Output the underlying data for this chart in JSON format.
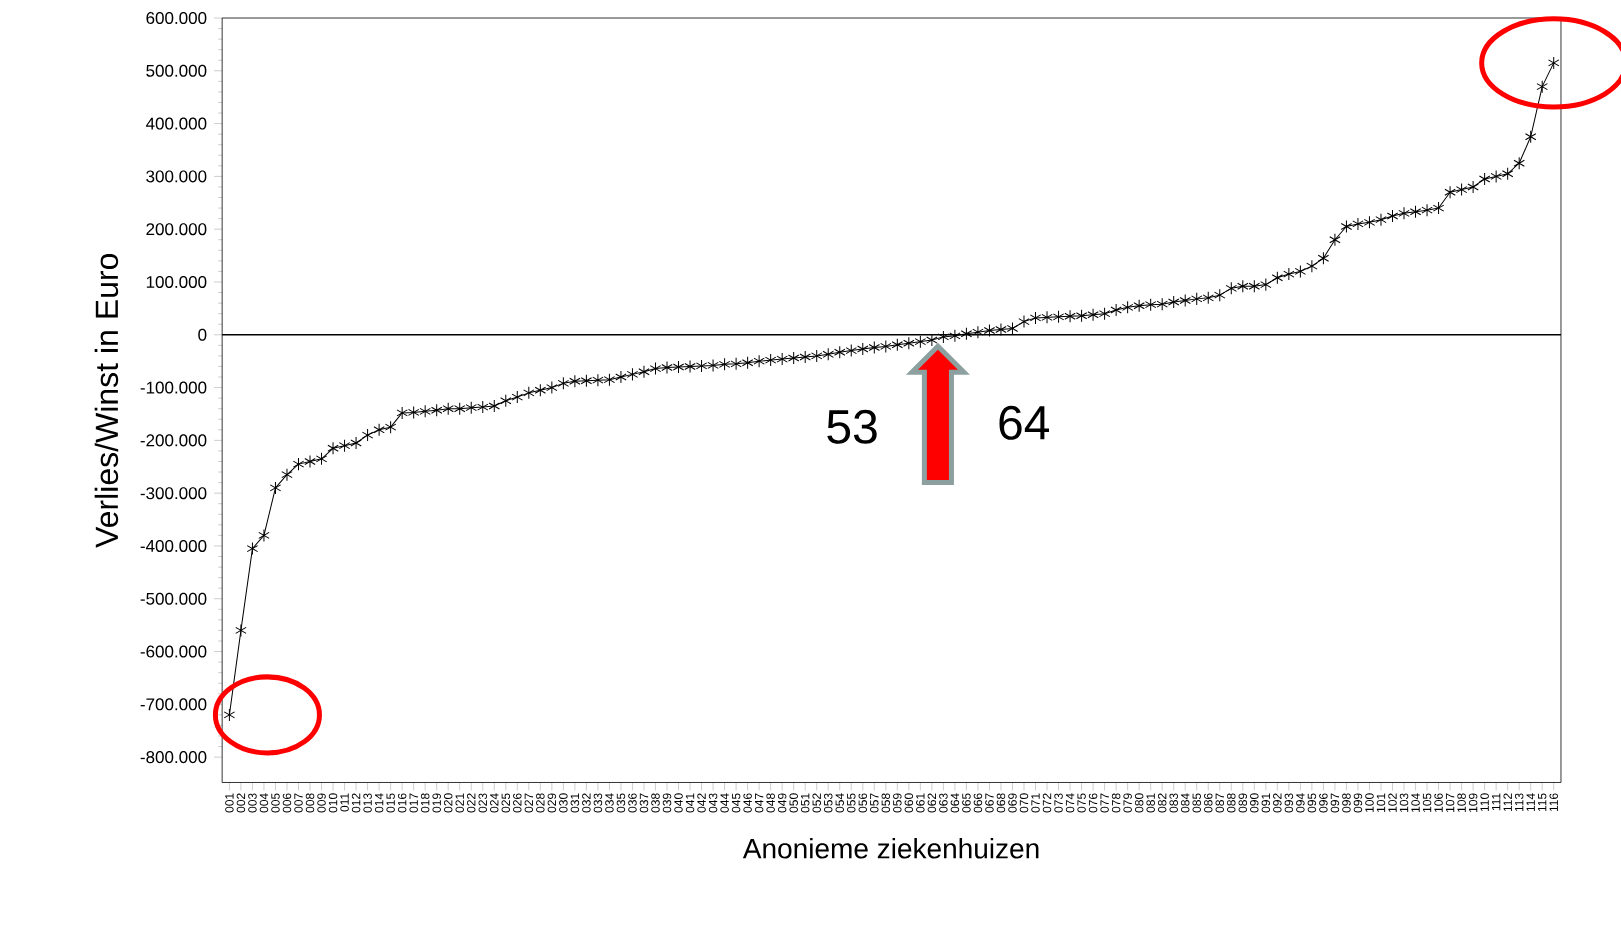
{
  "chart_data": {
    "type": "line",
    "xlabel": "Anonieme ziekenhuizen",
    "ylabel": "Verlies/Winst in Euro",
    "categories": [
      "001",
      "002",
      "003",
      "004",
      "005",
      "006",
      "007",
      "008",
      "009",
      "010",
      "011",
      "012",
      "013",
      "014",
      "015",
      "016",
      "017",
      "018",
      "019",
      "020",
      "021",
      "022",
      "023",
      "024",
      "025",
      "026",
      "027",
      "028",
      "029",
      "030",
      "031",
      "032",
      "033",
      "034",
      "035",
      "036",
      "037",
      "038",
      "039",
      "040",
      "041",
      "042",
      "043",
      "044",
      "045",
      "046",
      "047",
      "048",
      "049",
      "050",
      "051",
      "052",
      "053",
      "054",
      "055",
      "056",
      "057",
      "058",
      "059",
      "060",
      "061",
      "062",
      "063",
      "064",
      "065",
      "066",
      "067",
      "068",
      "069",
      "070",
      "071",
      "072",
      "073",
      "074",
      "075",
      "076",
      "077",
      "078",
      "079",
      "080",
      "081",
      "082",
      "083",
      "084",
      "085",
      "086",
      "087",
      "088",
      "089",
      "090",
      "091",
      "092",
      "093",
      "094",
      "095",
      "096",
      "097",
      "098",
      "099",
      "100",
      "101",
      "102",
      "103",
      "104",
      "105",
      "106",
      "107",
      "108",
      "109",
      "110",
      "111",
      "112",
      "113",
      "114",
      "115",
      "116"
    ],
    "series": [
      {
        "color": "#000000",
        "values": [
          -720000,
          -560000,
          -405000,
          -380000,
          -290000,
          -265000,
          -245000,
          -240000,
          -235000,
          -215000,
          -210000,
          -205000,
          -190000,
          -180000,
          -175000,
          -148000,
          -147000,
          -145000,
          -143000,
          -140000,
          -140000,
          -138000,
          -137000,
          -135000,
          -125000,
          -118000,
          -110000,
          -105000,
          -100000,
          -92000,
          -88000,
          -87000,
          -86000,
          -85000,
          -80000,
          -75000,
          -70000,
          -64000,
          -62000,
          -61000,
          -60000,
          -59000,
          -58000,
          -56000,
          -55000,
          -53000,
          -50000,
          -48000,
          -46000,
          -44000,
          -42000,
          -40000,
          -37000,
          -33000,
          -30000,
          -27000,
          -24000,
          -22000,
          -19000,
          -16000,
          -13000,
          -10000,
          -4000,
          -2000,
          2000,
          5000,
          8000,
          10000,
          12000,
          25000,
          32000,
          33000,
          34000,
          35000,
          36000,
          38000,
          40000,
          47000,
          52000,
          55000,
          57000,
          58000,
          62000,
          65000,
          68000,
          70000,
          75000,
          88000,
          92000,
          92000,
          95000,
          108000,
          115000,
          120000,
          130000,
          145000,
          180000,
          205000,
          210000,
          213000,
          218000,
          225000,
          230000,
          233000,
          236000,
          240000,
          270000,
          275000,
          280000,
          295000,
          300000,
          305000,
          325000,
          375000,
          470000,
          515000
        ]
      }
    ],
    "ylim": [
      -848000,
      600000
    ],
    "yticks": [
      {
        "value": -800000,
        "label": "-800.000"
      },
      {
        "value": -700000,
        "label": "-700.000"
      },
      {
        "value": -600000,
        "label": "-600.000"
      },
      {
        "value": -500000,
        "label": "-500.000"
      },
      {
        "value": -400000,
        "label": "-400.000"
      },
      {
        "value": -300000,
        "label": "-300.000"
      },
      {
        "value": -200000,
        "label": "-200.000"
      },
      {
        "value": -100000,
        "label": "-100.000"
      },
      0,
      {
        "value": 100000,
        "label": "100.000"
      },
      {
        "value": 200000,
        "label": "200.000"
      },
      {
        "value": 300000,
        "label": "300.000"
      },
      {
        "value": 400000,
        "label": "400.000"
      },
      {
        "value": 500000,
        "label": "500.000"
      },
      {
        "value": 600000,
        "label": "600.000"
      }
    ],
    "ref_lines": [
      {
        "axis": "y",
        "value": 0,
        "color": "#000000"
      }
    ],
    "annotations": [
      "53",
      "64"
    ],
    "marker": "cross",
    "line_style": "solid",
    "grid": false
  }
}
